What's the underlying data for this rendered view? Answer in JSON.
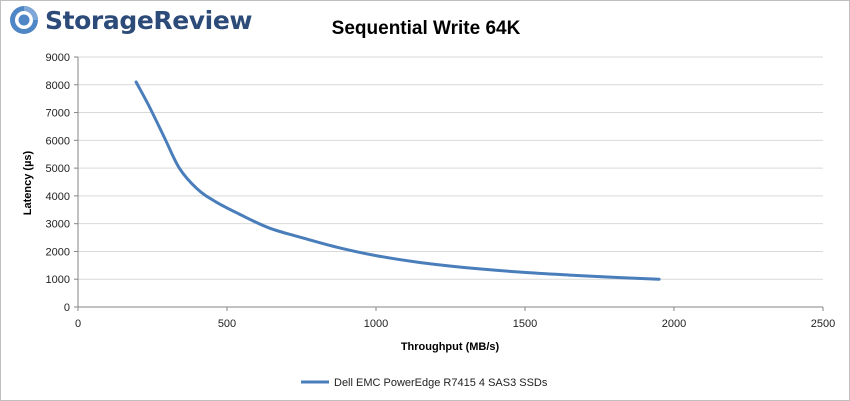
{
  "brand": {
    "name": "StorageReview",
    "accent": "#2c4b78",
    "mark_color": "#4f86c6",
    "icon": "storagereview-logo-icon"
  },
  "chart_data": {
    "type": "line",
    "title": "Sequential Write 64K",
    "xlabel": "Throughput (MB/s)",
    "ylabel": "Latency (µs)",
    "xlim": [
      0,
      2500
    ],
    "ylim": [
      0,
      9000
    ],
    "xticks": [
      0,
      500,
      1000,
      1500,
      2000,
      2500
    ],
    "yticks": [
      0,
      1000,
      2000,
      3000,
      4000,
      5000,
      6000,
      7000,
      8000,
      9000
    ],
    "grid": "horizontal",
    "legend_position": "bottom",
    "series": [
      {
        "name": "Dell EMC PowerEdge R7415 4 SAS3 SSDs",
        "color": "#4a7ebb",
        "points": [
          {
            "x": 195,
            "y": 8100
          },
          {
            "x": 240,
            "y": 7200
          },
          {
            "x": 290,
            "y": 6100
          },
          {
            "x": 340,
            "y": 5000
          },
          {
            "x": 400,
            "y": 4250
          },
          {
            "x": 460,
            "y": 3800
          },
          {
            "x": 540,
            "y": 3350
          },
          {
            "x": 640,
            "y": 2850
          },
          {
            "x": 750,
            "y": 2500
          },
          {
            "x": 870,
            "y": 2150
          },
          {
            "x": 1000,
            "y": 1850
          },
          {
            "x": 1150,
            "y": 1600
          },
          {
            "x": 1300,
            "y": 1420
          },
          {
            "x": 1480,
            "y": 1260
          },
          {
            "x": 1650,
            "y": 1150
          },
          {
            "x": 1820,
            "y": 1060
          },
          {
            "x": 1950,
            "y": 1000
          }
        ]
      }
    ]
  }
}
